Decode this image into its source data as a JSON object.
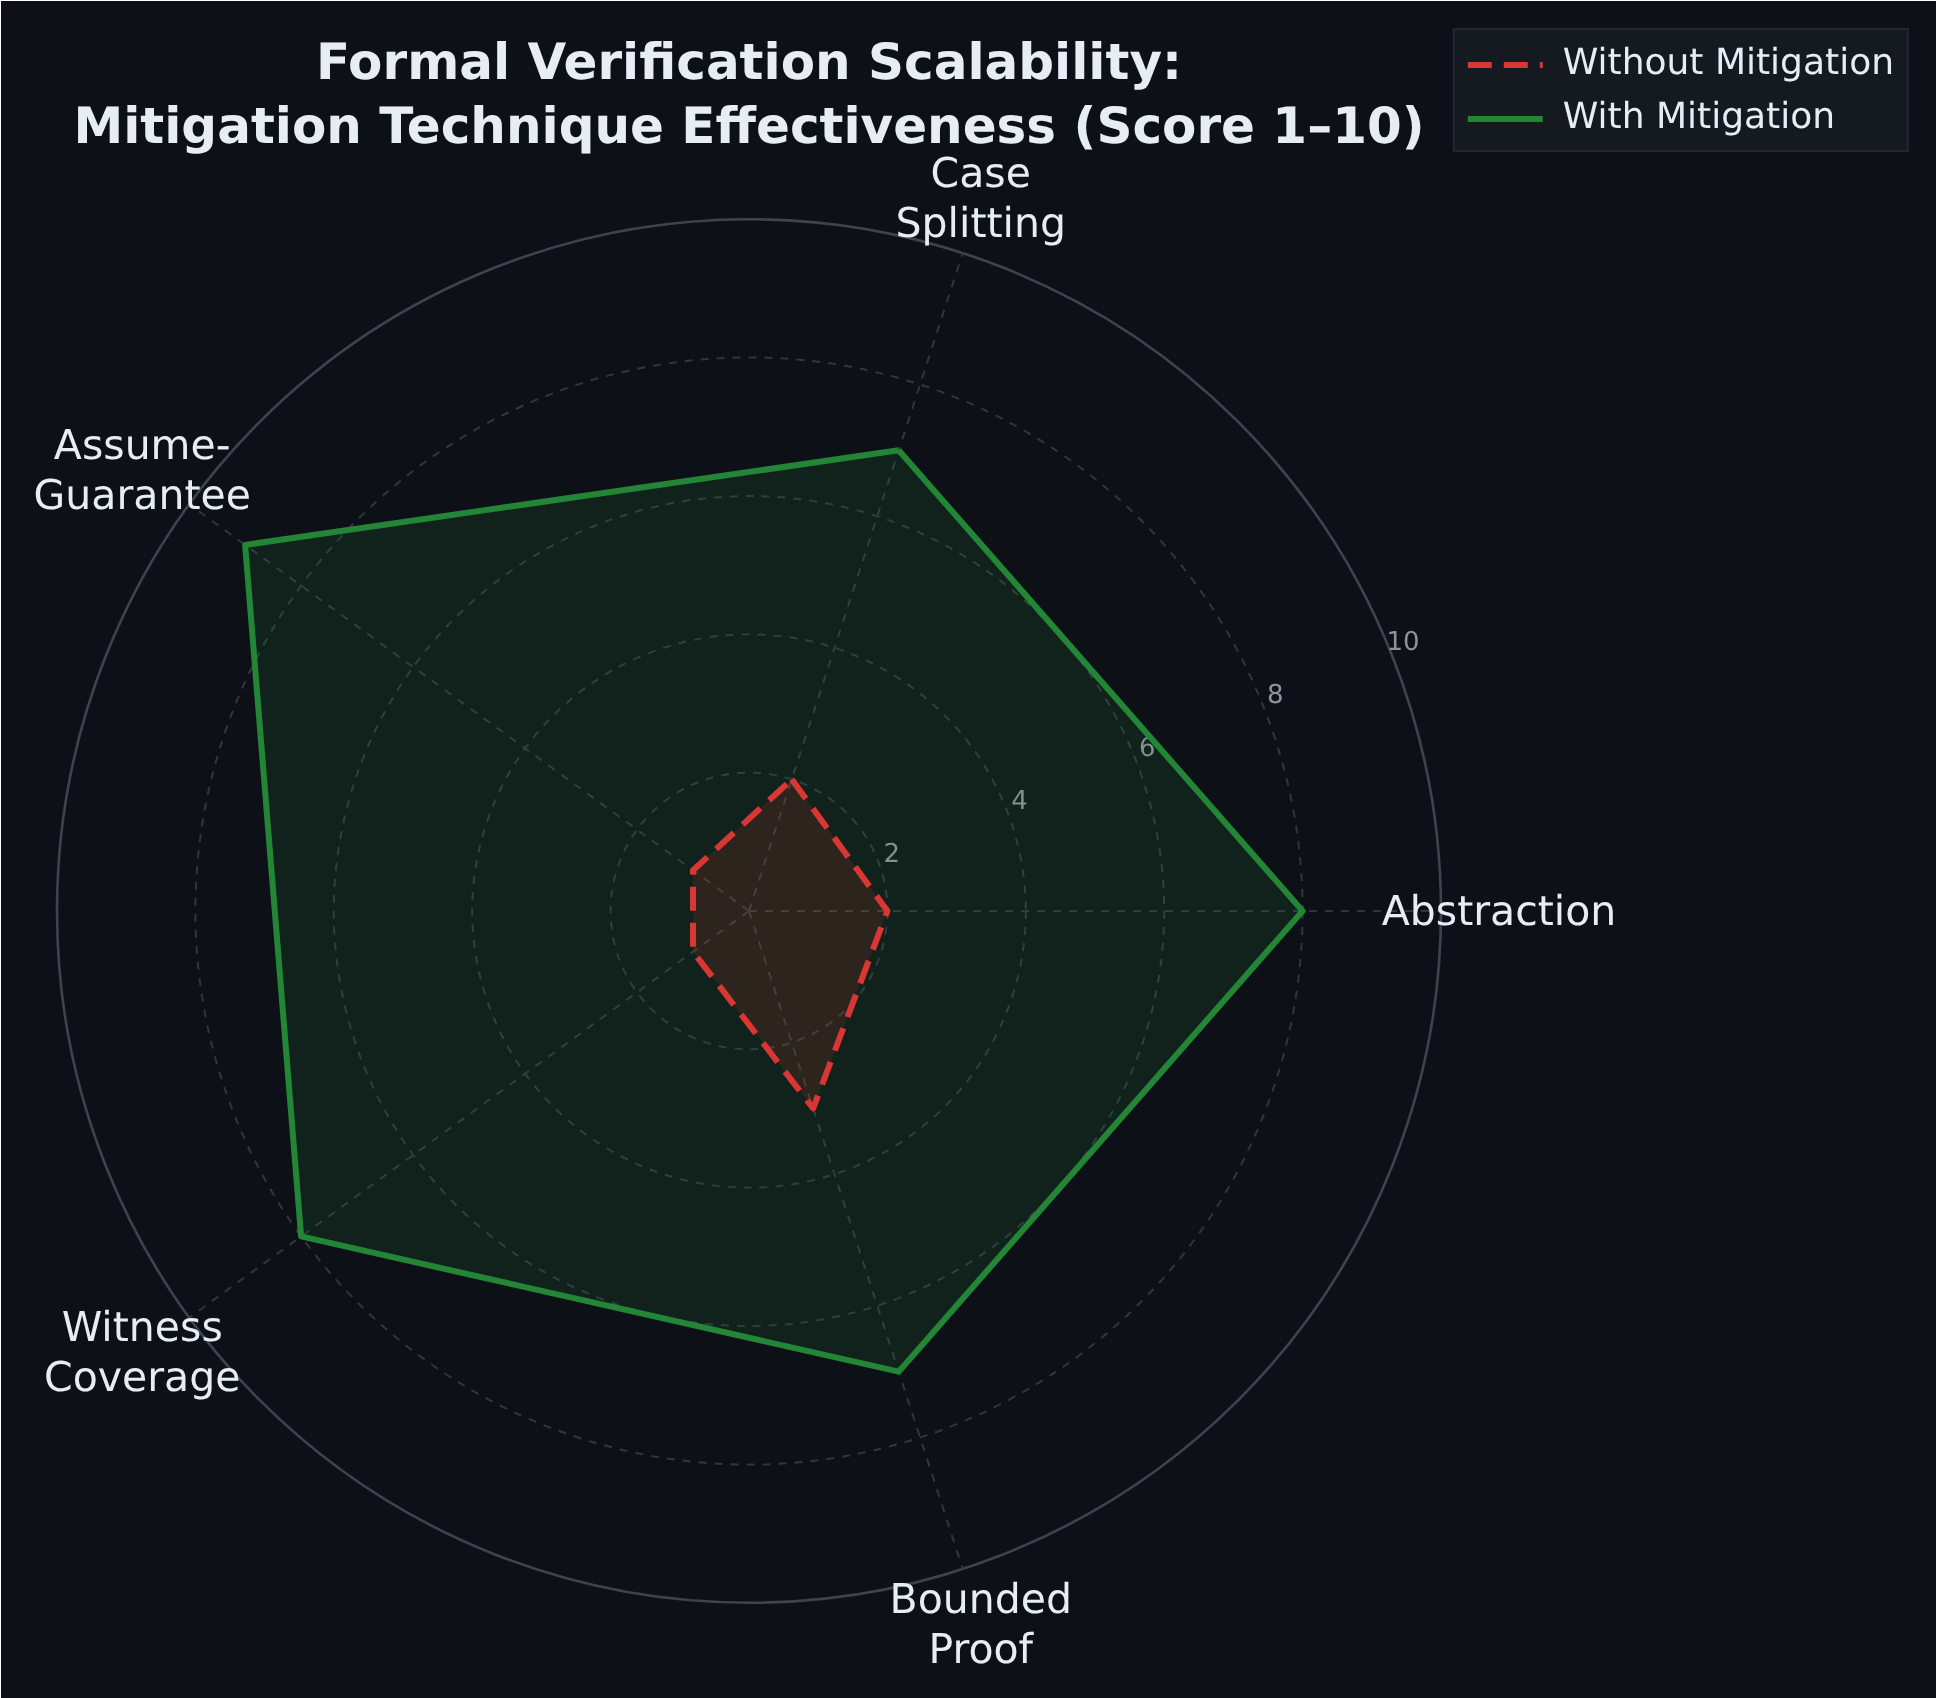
{
  "chart_data": {
    "type": "radar",
    "title": "Formal Verification Scalability:\nMitigation Technique Effectiveness (Score 1–10)",
    "categories": [
      "Case\nSplitting",
      "Abstraction",
      "Bounded\nProof",
      "Witness\nCoverage",
      "Assume-\nGuarantee"
    ],
    "series": [
      {
        "name": "Without Mitigation",
        "color": "#da3633",
        "values": [
          2,
          2,
          3,
          1,
          1
        ],
        "line_style": "dashed"
      },
      {
        "name": "With Mitigation",
        "color": "#238636",
        "values": [
          7,
          8,
          7,
          8,
          9
        ],
        "line_style": "solid"
      }
    ],
    "ylim": [
      0,
      10
    ],
    "yticks": [
      2,
      4,
      6,
      8,
      10
    ],
    "grid": true,
    "legend": "top right"
  }
}
